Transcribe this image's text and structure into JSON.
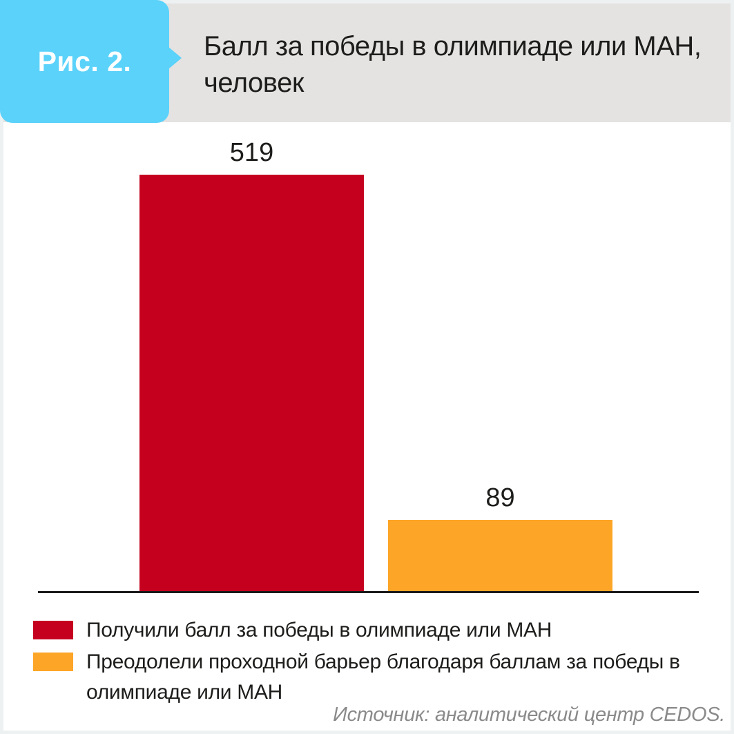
{
  "header": {
    "figure_label": "Рис. 2.",
    "title_line1": "Балл за победы в олимпиаде или МАН,",
    "title_line2": "человек"
  },
  "chart_data": {
    "type": "bar",
    "title": "Балл за победы в олимпиаде или МАН, человек",
    "categories": [
      "Получили балл за победы в олимпиаде или МАН",
      "Преодолели проходной барьер благодаря баллам за победы в олимпиаде или МАН"
    ],
    "values": [
      519,
      89
    ],
    "colors": [
      "#c5001f",
      "#fda526"
    ],
    "xlabel": "",
    "ylabel": "",
    "ylim": [
      0,
      560
    ],
    "grid": false,
    "axis_labels_shown": false,
    "value_labels_shown": true,
    "legend_position": "bottom"
  },
  "legend": {
    "items": [
      {
        "label": "Получили балл за победы в олимпиаде или МАН",
        "color": "#c5001f"
      },
      {
        "label": "Преодолели проходной барьер благодаря баллам за победы в олимпиаде или МАН",
        "color": "#fda526"
      }
    ]
  },
  "source": "Источник: аналитический центр CEDOS.",
  "colors": {
    "badge_blue": "#5bd2fa",
    "header_gray": "#e4e3e2",
    "bar_red": "#c5001f",
    "bar_orange": "#fda526",
    "axis_black": "#1a1a1a",
    "source_gray": "#8a8a8a",
    "card_border": "#edf1f1"
  }
}
